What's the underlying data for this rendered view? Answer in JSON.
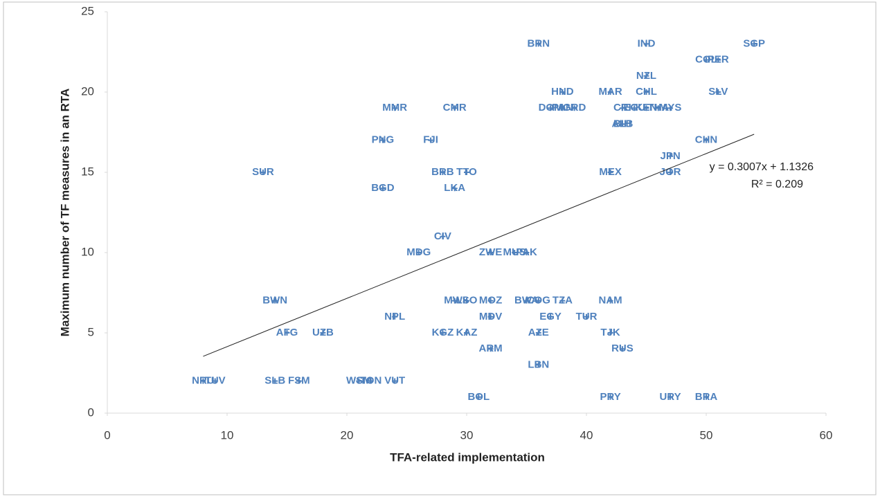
{
  "chart_data": {
    "type": "scatter",
    "x_label": "TFA-related implementation",
    "y_label": "Maximum number of TF measures in an RTA",
    "color": "#4f81bd",
    "point_labels": [
      "BRN",
      "IND",
      "SGP",
      "COL",
      "PER",
      "NZL",
      "HND",
      "MAR",
      "CHL",
      "SLV",
      "MMR",
      "CMR",
      "DOM",
      "PAN",
      "GRD",
      "CRI",
      "ECU",
      "KEN",
      "THA",
      "MYS",
      "ALB",
      "BIH",
      "PNG",
      "FJI",
      "CHN",
      "JPN",
      "SUR",
      "BRB",
      "TTO",
      "MEX",
      "JOR",
      "BGD",
      "LKA",
      "CIV",
      "MDG",
      "ZWE",
      "MUS",
      "PAK",
      "BWN",
      "MWI",
      "LSO",
      "MOZ",
      "BWA",
      "COG",
      "TZA",
      "NAM",
      "NPL",
      "MDV",
      "EGY",
      "TUR",
      "AFG",
      "UZB",
      "KGZ",
      "KAZ",
      "AZE",
      "TJK",
      "ARM",
      "RUS",
      "LBN",
      "NRU",
      "TUV",
      "SLB",
      "FSM",
      "WSM",
      "TON",
      "VUT",
      "BOL",
      "PRY",
      "URY",
      "BRA"
    ],
    "x": [
      36,
      45,
      54,
      50,
      51,
      45,
      38,
      42,
      45,
      51,
      24,
      29,
      37,
      38,
      39,
      43,
      44,
      45,
      46,
      47,
      43,
      43,
      23,
      27,
      50,
      47,
      13,
      28,
      30,
      42,
      47,
      23,
      29,
      28,
      26,
      32,
      34,
      35,
      14,
      29,
      30,
      32,
      35,
      36,
      38,
      42,
      24,
      32,
      37,
      40,
      15,
      18,
      28,
      30,
      36,
      42,
      32,
      43,
      36,
      8,
      9,
      14,
      16,
      21,
      22,
      24,
      31,
      42,
      47,
      50
    ],
    "values": [
      23,
      23,
      23,
      22,
      22,
      21,
      20,
      20,
      20,
      20,
      19,
      19,
      19,
      19,
      19,
      19,
      19,
      19,
      19,
      19,
      18,
      18,
      17,
      17,
      17,
      16,
      15,
      15,
      15,
      15,
      15,
      14,
      14,
      11,
      10,
      10,
      10,
      10,
      7,
      7,
      7,
      7,
      7,
      7,
      7,
      7,
      6,
      6,
      6,
      6,
      5,
      5,
      5,
      5,
      5,
      5,
      4,
      4,
      3,
      2,
      2,
      2,
      2,
      2,
      2,
      2,
      1,
      1,
      1,
      1
    ],
    "xlim": [
      0,
      60
    ],
    "xticks": [
      0,
      10,
      20,
      30,
      40,
      50,
      60
    ],
    "ylim": [
      0,
      25
    ],
    "yticks": [
      0,
      5,
      10,
      15,
      20,
      25
    ],
    "trendline": {
      "slope": 0.3007,
      "intercept": 1.1326,
      "x_range": [
        8,
        54
      ],
      "equation": "y = 0.3007x + 1.1326",
      "r2": "R² = 0.209"
    }
  }
}
